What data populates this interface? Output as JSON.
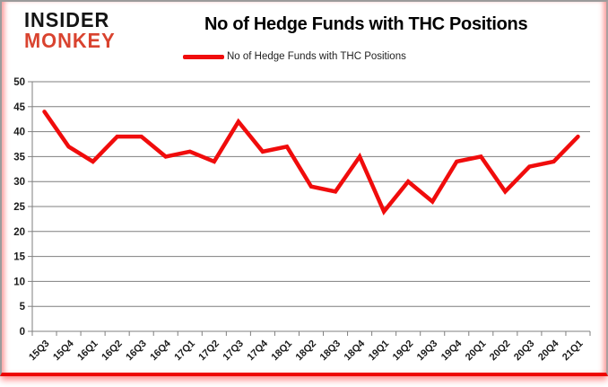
{
  "logo": {
    "line1": "INSIDER",
    "line2": "MONKEY",
    "accent_color": "#d9432f"
  },
  "header": {
    "title": "No of Hedge Funds with THC Positions",
    "legend": {
      "label": "No of Hedge Funds with THC Positions",
      "color": "#f00c0c"
    }
  },
  "chart_data": {
    "type": "line",
    "title": "No of Hedge Funds with THC Positions",
    "categories": [
      "15Q3",
      "15Q4",
      "16Q1",
      "16Q2",
      "16Q3",
      "16Q4",
      "17Q1",
      "17Q2",
      "17Q3",
      "17Q4",
      "18Q1",
      "18Q2",
      "18Q3",
      "18Q4",
      "19Q1",
      "19Q2",
      "19Q3",
      "19Q4",
      "20Q1",
      "20Q2",
      "20Q3",
      "20Q4",
      "21Q1"
    ],
    "series": [
      {
        "name": "No of Hedge Funds with THC Positions",
        "color": "#f00c0c",
        "values": [
          44,
          37,
          34,
          39,
          39,
          35,
          36,
          34,
          42,
          36,
          37,
          29,
          28,
          35,
          24,
          30,
          26,
          34,
          35,
          28,
          33,
          34,
          39
        ]
      }
    ],
    "xlabel": "",
    "ylabel": "",
    "ylim": [
      0,
      50
    ],
    "yticks": [
      0,
      5,
      10,
      15,
      20,
      25,
      30,
      35,
      40,
      45,
      50
    ],
    "grid": true,
    "gridline_color": "#7f7f7f",
    "axis_label_color": "#1a1a1a",
    "legend_position": "top"
  }
}
